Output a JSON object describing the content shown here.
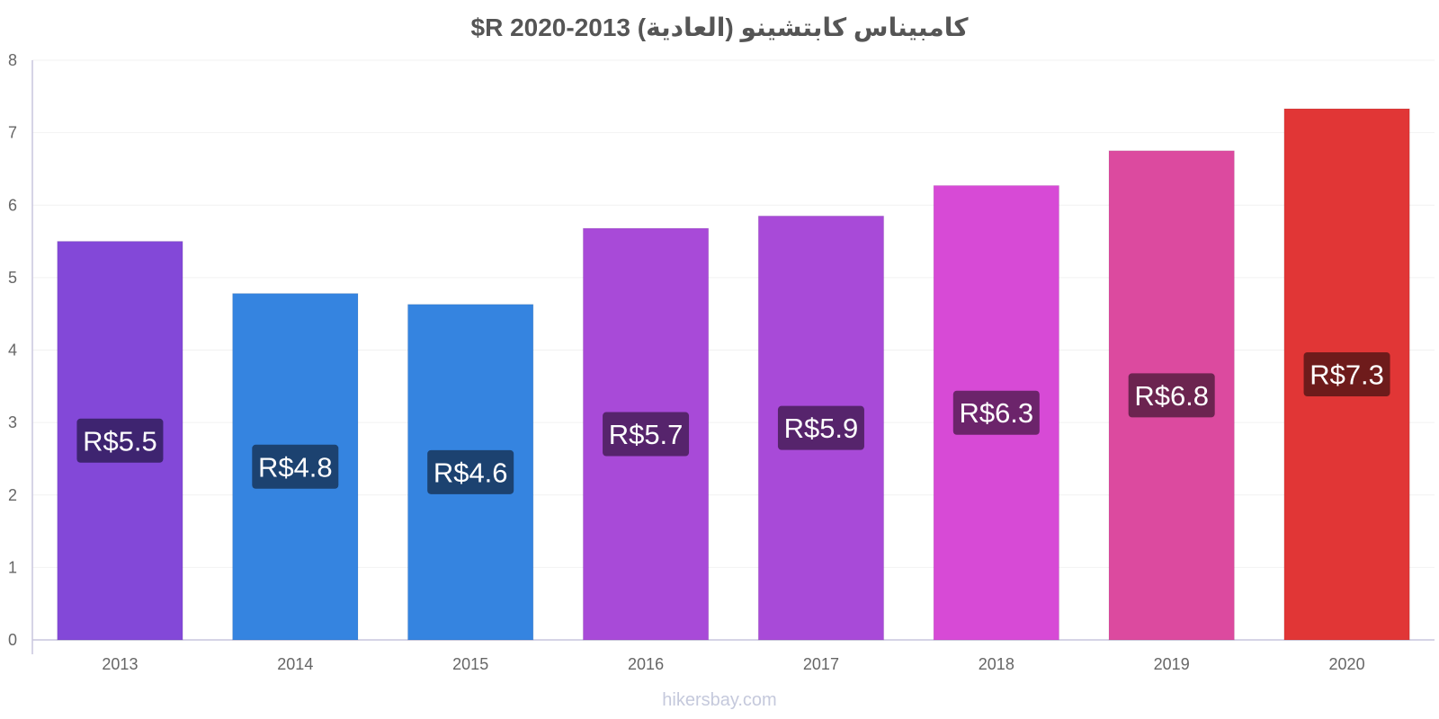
{
  "chart_data": {
    "type": "bar",
    "title": "كامبيناس كابتشينو (العادية) 2013-2020 R$",
    "categories": [
      "2013",
      "2014",
      "2015",
      "2016",
      "2017",
      "2018",
      "2019",
      "2020"
    ],
    "values": [
      5.5,
      4.78,
      4.63,
      5.68,
      5.85,
      6.27,
      6.75,
      7.33
    ],
    "data_labels": [
      "R$5.5",
      "R$4.8",
      "R$4.6",
      "R$5.7",
      "R$5.9",
      "R$6.3",
      "R$6.8",
      "R$7.3"
    ],
    "bar_colors": [
      "#8348d8",
      "#3584e0",
      "#3584e0",
      "#a84ad8",
      "#a84ad8",
      "#d74ad6",
      "#dc4a9f",
      "#e13636"
    ],
    "label_bg_colors": [
      "#3e2470",
      "#1c4270",
      "#1c4270",
      "#56246c",
      "#56246c",
      "#6c246b",
      "#6c2450",
      "#6e1b1b"
    ],
    "ylim": [
      0,
      8
    ],
    "yticks": [
      "0",
      "1",
      "2",
      "3",
      "4",
      "5",
      "6",
      "7",
      "8"
    ],
    "grid": true,
    "xlabel": "",
    "ylabel": ""
  },
  "watermark": "hikersbay.com"
}
